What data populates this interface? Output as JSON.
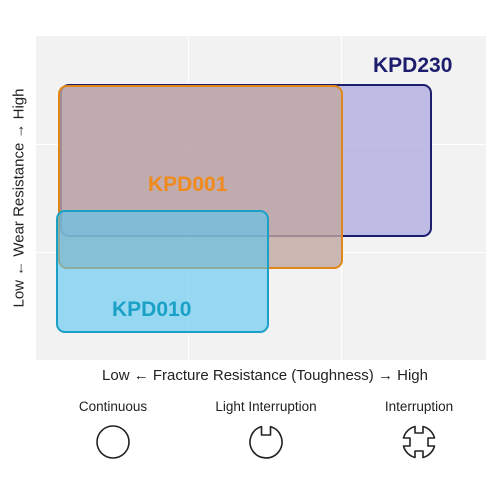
{
  "regions": {
    "kpd230": {
      "label": "KPD230",
      "color": "#1d1d6e"
    },
    "kpd001": {
      "label": "KPD001",
      "color": "#f08a1c"
    },
    "kpd010": {
      "label": "KPD010",
      "color": "#1ba0c8"
    }
  },
  "axes": {
    "y_label": "Low ← Wear Resistance → High",
    "x_label": "Low ← Fracture Resistance (Toughness) → High"
  },
  "legend": [
    {
      "label": "Continuous",
      "icon": "circle-icon"
    },
    {
      "label": "Light Interruption",
      "icon": "notched-circle-icon"
    },
    {
      "label": "Interruption",
      "icon": "cross-slot-circle-icon"
    }
  ]
}
